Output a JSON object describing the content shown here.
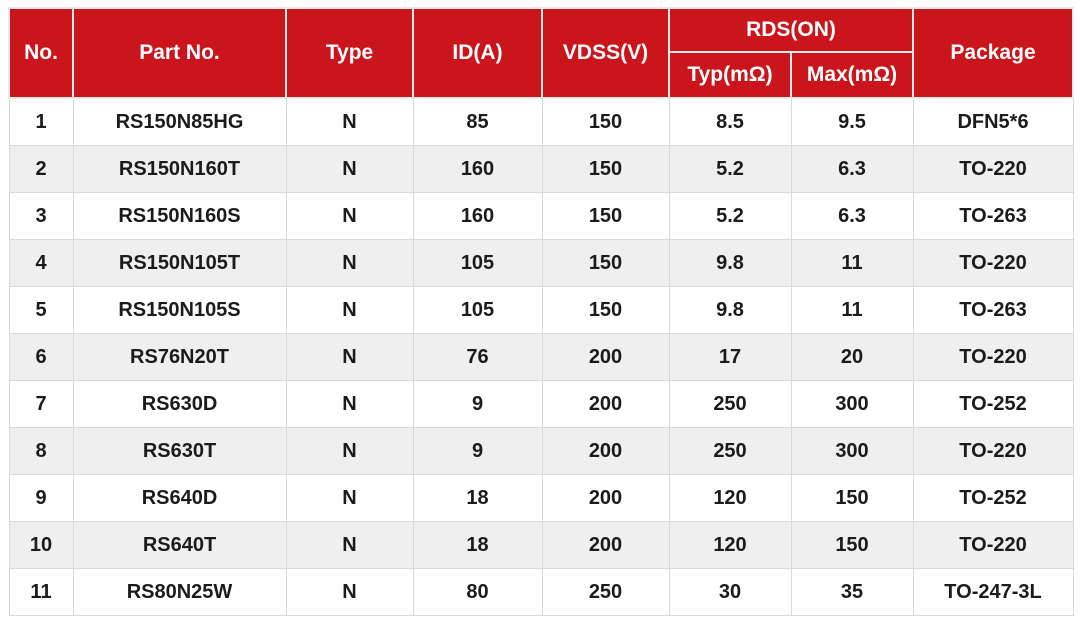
{
  "table": {
    "headers": {
      "no": "No.",
      "part_no": "Part No.",
      "type": "Type",
      "id_a": "ID(A)",
      "vdss": "VDSS(V)",
      "rds_on": "RDS(ON)",
      "typ": "Typ(mΩ)",
      "max": "Max(mΩ)",
      "package": "Package"
    },
    "rows": [
      [
        "1",
        "RS150N85HG",
        "N",
        "85",
        "150",
        "8.5",
        "9.5",
        "DFN5*6"
      ],
      [
        "2",
        "RS150N160T",
        "N",
        "160",
        "150",
        "5.2",
        "6.3",
        "TO-220"
      ],
      [
        "3",
        "RS150N160S",
        "N",
        "160",
        "150",
        "5.2",
        "6.3",
        "TO-263"
      ],
      [
        "4",
        "RS150N105T",
        "N",
        "105",
        "150",
        "9.8",
        "11",
        "TO-220"
      ],
      [
        "5",
        "RS150N105S",
        "N",
        "105",
        "150",
        "9.8",
        "11",
        "TO-263"
      ],
      [
        "6",
        "RS76N20T",
        "N",
        "76",
        "200",
        "17",
        "20",
        "TO-220"
      ],
      [
        "7",
        "RS630D",
        "N",
        "9",
        "200",
        "250",
        "300",
        "TO-252"
      ],
      [
        "8",
        "RS630T",
        "N",
        "9",
        "200",
        "250",
        "300",
        "TO-220"
      ],
      [
        "9",
        "RS640D",
        "N",
        "18",
        "200",
        "120",
        "150",
        "TO-252"
      ],
      [
        "10",
        "RS640T",
        "N",
        "18",
        "200",
        "120",
        "150",
        "TO-220"
      ],
      [
        "11",
        "RS80N25W",
        "N",
        "80",
        "250",
        "30",
        "35",
        "TO-247-3L"
      ]
    ]
  },
  "colors": {
    "header_bg": "#c9151b",
    "header_text": "#ffffff",
    "row_bg": "#ffffff",
    "row_alt_bg": "#f0eff0",
    "border": "#d9d9d9",
    "text": "#1b1b1d"
  }
}
